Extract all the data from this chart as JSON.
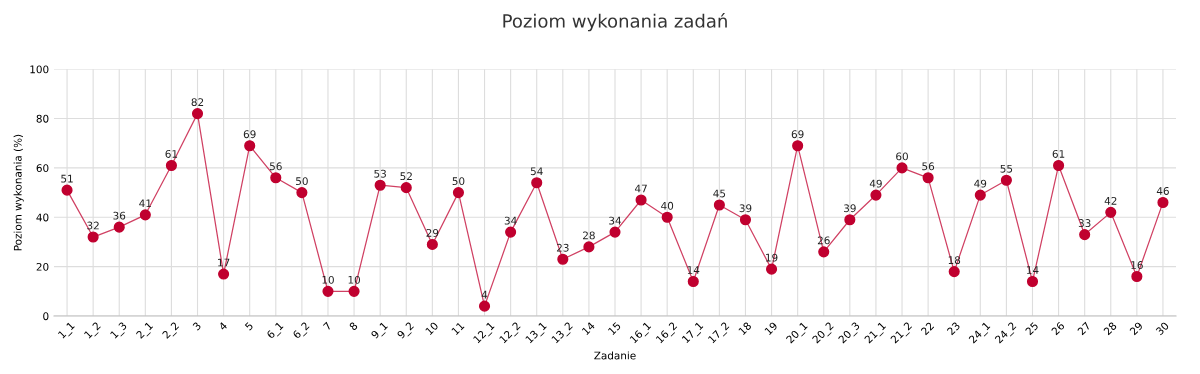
{
  "chart_data": {
    "type": "line",
    "title": "Poziom wykonania zadań",
    "xlabel": "Zadanie",
    "ylabel": "Poziom wykonania (%)",
    "categories": [
      "1_1",
      "1_2",
      "1_3",
      "2_1",
      "2_2",
      "3",
      "4",
      "5",
      "6_1",
      "6_2",
      "7",
      "8",
      "9_1",
      "9_2",
      "10",
      "11",
      "12_1",
      "12_2",
      "13_1",
      "13_2",
      "14",
      "15",
      "16_1",
      "16_2",
      "17_1",
      "17_2",
      "18",
      "19",
      "20_1",
      "20_2",
      "20_3",
      "21_1",
      "21_2",
      "22",
      "23",
      "24_1",
      "24_2",
      "25",
      "26",
      "27",
      "28",
      "29",
      "30"
    ],
    "series": [
      {
        "color": "#c0002f",
        "values": [
          51,
          32,
          36,
          41,
          61,
          82,
          17,
          69,
          56,
          50,
          10,
          10,
          53,
          52,
          29,
          50,
          4,
          34,
          54,
          23,
          28,
          34,
          47,
          40,
          14,
          45,
          39,
          19,
          69,
          26,
          39,
          49,
          60,
          56,
          18,
          49,
          55,
          14,
          61,
          33,
          42,
          16,
          46
        ]
      }
    ],
    "ylim": [
      0,
      100
    ],
    "yticks": [
      0,
      20,
      40,
      60,
      80,
      100
    ],
    "grid": true,
    "marker": "circle",
    "line_style": "solid",
    "data_labels": true
  }
}
